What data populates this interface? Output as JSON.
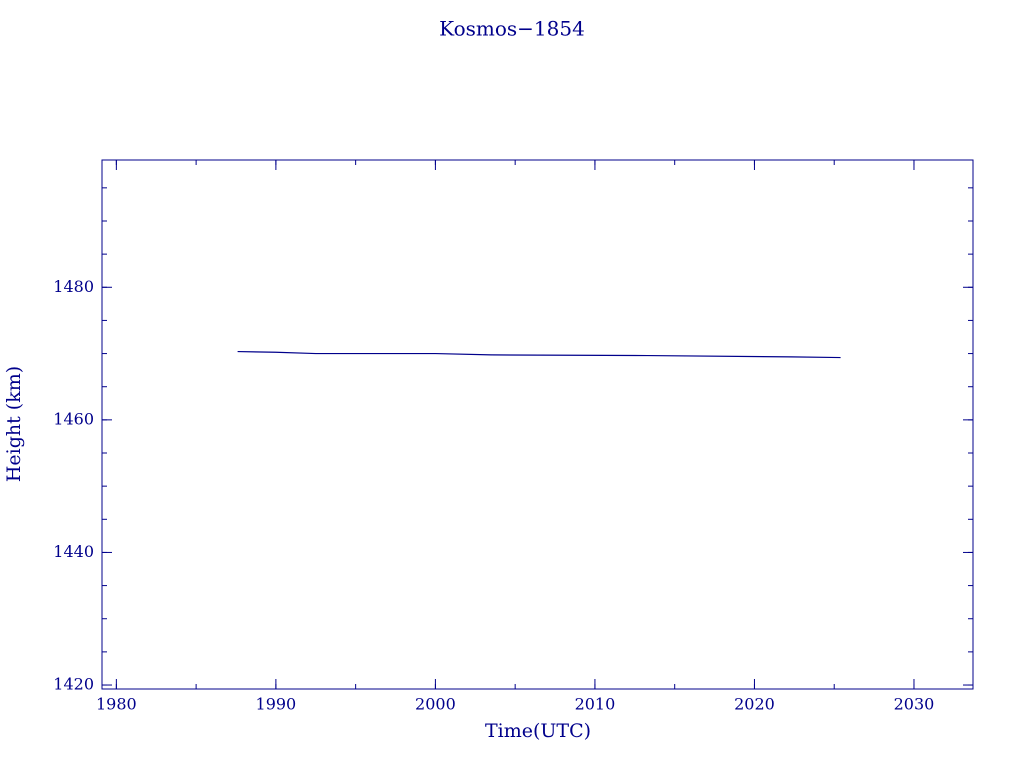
{
  "chart_data": {
    "type": "line",
    "title": "Kosmos−1854",
    "x_label": "Time(UTC)",
    "y_label": "Height (km)",
    "x": [
      1987.6,
      1990.0,
      1992.5,
      2000.0,
      2003.5,
      2013.3,
      2022.3,
      2025.4
    ],
    "series": [
      {
        "name": "Height",
        "color": "#00008b",
        "values": [
          1470.3,
          1470.2,
          1470.0,
          1470.0,
          1469.8,
          1469.7,
          1469.5,
          1469.4
        ]
      }
    ],
    "xlim": [
      1979.1,
      2033.7
    ],
    "xticks": [
      1980,
      1990,
      2000,
      2010,
      2020,
      2030
    ],
    "ylim": [
      1419.4,
      1499.2
    ],
    "yticks": [
      1420,
      1440,
      1460,
      1480
    ],
    "grid": false
  }
}
